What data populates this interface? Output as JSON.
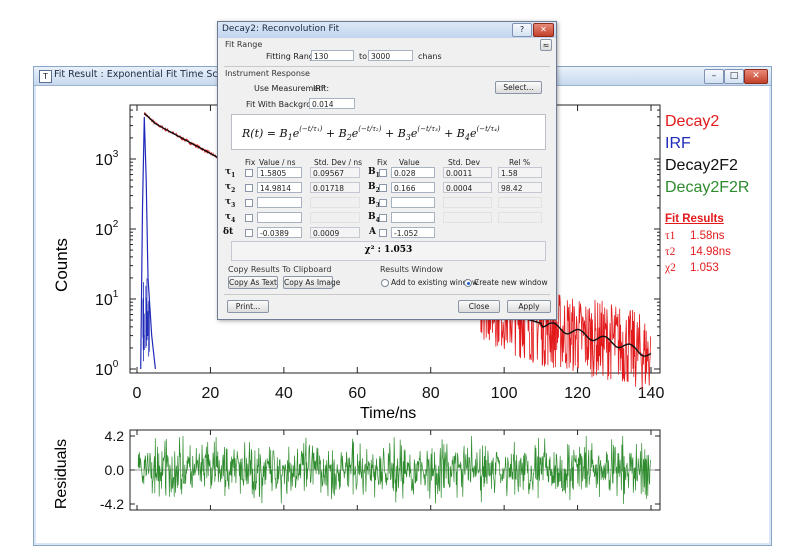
{
  "window": {
    "title": "Fit Result : Exponential Fit Time Scan",
    "app_icon": "T",
    "min_glyph": "–",
    "max_glyph": "□",
    "close_glyph": "✕"
  },
  "plot": {
    "ylabel": "Counts",
    "xlabel": "Time/ns",
    "residuals_label": "Residuals",
    "x_ticks": [
      "0",
      "20",
      "40",
      "60",
      "80",
      "100",
      "120",
      "140"
    ],
    "y_ticks": [
      {
        "base": "10",
        "exp": "0"
      },
      {
        "base": "10",
        "exp": "1"
      },
      {
        "base": "10",
        "exp": "2"
      },
      {
        "base": "10",
        "exp": "3"
      }
    ],
    "res_ticks": [
      "4.2",
      "0.0",
      "-4.2"
    ]
  },
  "legend": {
    "items": [
      {
        "label": "Decay2",
        "color": "#e31a1c"
      },
      {
        "label": "IRF",
        "color": "#1f2ab8"
      },
      {
        "label": "Decay2F2",
        "color": "#111111"
      },
      {
        "label": "Decay2F2R",
        "color": "#2e8b2e"
      }
    ]
  },
  "fit_results": {
    "title": "Fit Results",
    "tau1_label": "τ1",
    "tau1_value": "1.58ns",
    "tau2_label": "τ2",
    "tau2_value": "14.98ns",
    "chi2_label": "χ2",
    "chi2_value": "1.053"
  },
  "dialog": {
    "title": "Decay2: Reconvolution Fit",
    "help_glyph": "?",
    "close_glyph": "✕",
    "collapse_glyph": "≈",
    "fit_range": {
      "group": "Fit Range",
      "label": "Fitting Range:",
      "from": "130",
      "to_label": "to",
      "to": "3000",
      "unit": "chans"
    },
    "instrument": {
      "group": "Instrument Response",
      "use_label": "Use Measurement:",
      "measurement": "IRF",
      "select_button": "Select...",
      "background_label": "Fit With Background:",
      "background_value": "0.014"
    },
    "headers": {
      "fix1": "Fix",
      "value1": "Value / ns",
      "stddev1": "Std. Dev / ns",
      "fix2": "Fix",
      "value2": "Value",
      "stddev2": "Std. Dev",
      "rel": "Rel %"
    },
    "rows": [
      {
        "tau": "τ",
        "tau_sub": "1",
        "val": "1.5805",
        "sd": "0.09567",
        "b": "B",
        "b_sub": "1",
        "bval": "0.028",
        "bsd": "0.0011",
        "rel": "1.58"
      },
      {
        "tau": "τ",
        "tau_sub": "2",
        "val": "14.9814",
        "sd": "0.01718",
        "b": "B",
        "b_sub": "2",
        "bval": "0.166",
        "bsd": "0.0004",
        "rel": "98.42"
      },
      {
        "tau": "τ",
        "tau_sub": "3",
        "val": "",
        "sd": "",
        "b": "B",
        "b_sub": "3",
        "bval": "",
        "bsd": "",
        "rel": ""
      },
      {
        "tau": "τ",
        "tau_sub": "4",
        "val": "",
        "sd": "",
        "b": "B",
        "b_sub": "4",
        "bval": "",
        "bsd": "",
        "rel": ""
      }
    ],
    "shift": {
      "label": "δt",
      "value": "-0.0389",
      "sd": "0.0009",
      "a_label": "A",
      "a_value": "-1.052"
    },
    "chi2_text": "χ² : 1.053",
    "copy": {
      "group": "Copy Results To Clipboard",
      "as_text": "Copy As Text",
      "as_image": "Copy As Image"
    },
    "results_window": {
      "group": "Results Window",
      "add_existing": "Add to existing window",
      "create_new": "Create new window"
    },
    "print_button": "Print...",
    "close_button": "Close",
    "apply_button": "Apply"
  },
  "chart_data": {
    "type": "line",
    "xlabel": "Time/ns",
    "ylabel": "Counts",
    "xlim": [
      0,
      140
    ],
    "ylim": [
      1,
      5000
    ],
    "yscale": "log",
    "series": [
      {
        "name": "Decay2",
        "color": "#e31a1c",
        "x": [
          2,
          5,
          10,
          20,
          40,
          60,
          80,
          100,
          110,
          120,
          130,
          140
        ],
        "values": [
          4500,
          3200,
          2300,
          1200,
          320,
          85,
          24,
          6.5,
          4,
          3,
          2.5,
          1.5
        ]
      },
      {
        "name": "IRF",
        "color": "#1f2ab8",
        "x": [
          1,
          1.5,
          2,
          2.5,
          3,
          4,
          5
        ],
        "values": [
          1,
          200,
          4000,
          500,
          20,
          3,
          1
        ]
      },
      {
        "name": "Decay2F2",
        "color": "#111111",
        "x": [
          2,
          5,
          10,
          20,
          40,
          60,
          80,
          100,
          110,
          120,
          130,
          140
        ],
        "values": [
          4500,
          3200,
          2300,
          1200,
          320,
          85,
          24,
          6.5,
          4.5,
          3.3,
          2.4,
          1.6
        ]
      }
    ],
    "residuals": {
      "name": "Decay2F2R",
      "color": "#2e8b2e",
      "ylim": [
        -4.2,
        4.2
      ]
    }
  }
}
